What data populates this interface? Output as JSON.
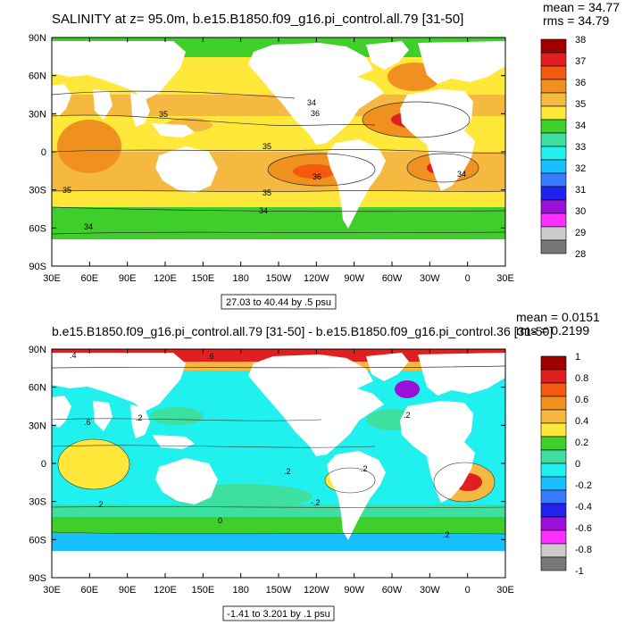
{
  "chart_data": [
    {
      "type": "heatmap",
      "title": "SALINITY at z=  95.0m, b.e15.B1850.f09_g16.pi_control.all.79 [31-50]",
      "stats": [
        "mean = 34.77",
        "rms = 34.79"
      ],
      "xticks": [
        "30E",
        "60E",
        "90E",
        "120E",
        "150E",
        "180",
        "150W",
        "120W",
        "90W",
        "60W",
        "30W",
        "0",
        "30E"
      ],
      "yticks": [
        "90N",
        "60N",
        "30N",
        "0",
        "30S",
        "60S",
        "90S"
      ],
      "range_label": "27.03 to 40.44 by .5 psu",
      "colorbar": {
        "labels": [
          "38",
          "37",
          "36",
          "35",
          "34",
          "33",
          "32",
          "31",
          "30",
          "29",
          "28"
        ],
        "colors": [
          "#a00000",
          "#e02020",
          "#f35a10",
          "#f0901e",
          "#f5b840",
          "#ffe83a",
          "#3ecf2a",
          "#3ee0a0",
          "#20f0ee",
          "#18bfff",
          "#3a7bff",
          "#2222ee",
          "#9a10d8",
          "#ff30ff",
          "#cccccc",
          "#777777"
        ]
      },
      "contour_labels": [
        "35",
        "34",
        "35",
        "36",
        "35",
        "36",
        "34",
        "34",
        "34",
        "35"
      ]
    },
    {
      "type": "heatmap",
      "title": "b.e15.B1850.f09_g16.pi_control.all.79 [31-50] - b.e15.B1850.f09_g16.pi_control.36 [31-50]",
      "stats": [
        "mean = 0.0151",
        "rms = 0.2199"
      ],
      "xticks": [
        "30E",
        "60E",
        "90E",
        "120E",
        "150E",
        "180",
        "150W",
        "120W",
        "90W",
        "60W",
        "30W",
        "0",
        "30E"
      ],
      "yticks": [
        "90N",
        "60N",
        "30N",
        "0",
        "30S",
        "60S",
        "90S"
      ],
      "range_label": "-1.41 to 3.201 by .1 psu",
      "colorbar": {
        "labels": [
          "1",
          "0.8",
          "0.6",
          "0.4",
          "0.2",
          "0",
          "-0.2",
          "-0.4",
          "-0.6",
          "-0.8",
          "-1"
        ],
        "colors": [
          "#a00000",
          "#e02020",
          "#f35a10",
          "#f0901e",
          "#f5b840",
          "#ffe83a",
          "#3ecf2a",
          "#3ee0a0",
          "#20f0ee",
          "#18bfff",
          "#3a7bff",
          "#2222ee",
          "#9a10d8",
          "#ff30ff",
          "#cccccc",
          "#777777"
        ]
      },
      "contour_labels": [
        ".4",
        ".6",
        ".6",
        ".2",
        ".2",
        ".2",
        ".2",
        "0",
        "-.2",
        ".2",
        ".2"
      ]
    }
  ]
}
